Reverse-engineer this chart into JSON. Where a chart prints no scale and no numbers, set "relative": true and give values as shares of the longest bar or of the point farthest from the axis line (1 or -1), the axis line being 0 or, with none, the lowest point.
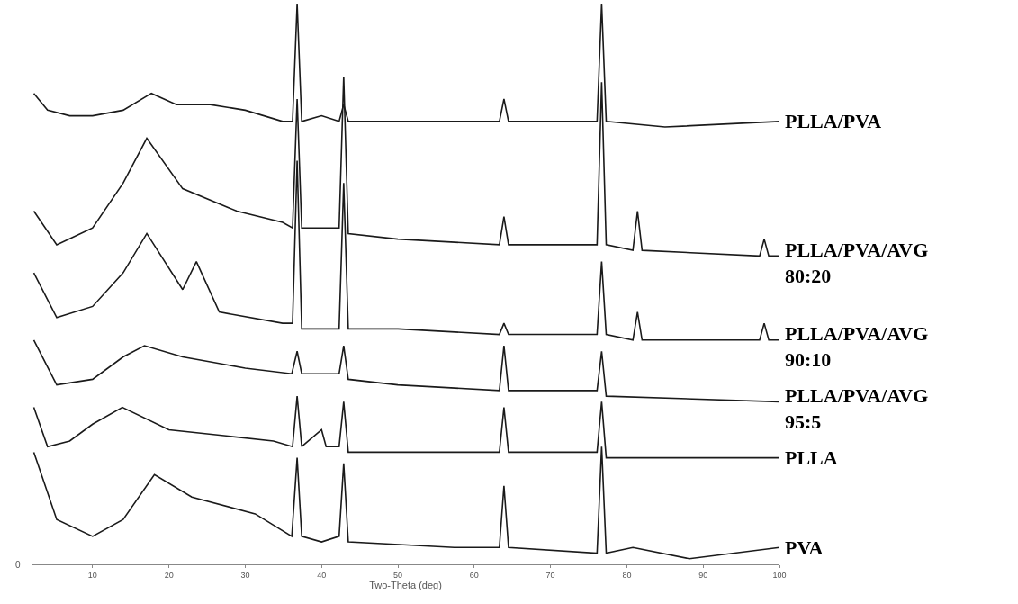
{
  "chart_data": {
    "type": "line",
    "relative": true,
    "xlabel": "Two-Theta (deg)",
    "xlim": [
      2,
      100
    ],
    "xticks": [
      10,
      20,
      30,
      40,
      50,
      60,
      70,
      80,
      90,
      100
    ],
    "legend": false,
    "marker": "none",
    "line_style": "solid",
    "annotations": [
      "0"
    ],
    "series": [
      {
        "name": "PLLA/PVA",
        "color": "#1a1a1a",
        "x": [
          2.3,
          4.1,
          7.0,
          10,
          14,
          17.7,
          21,
          25.4,
          30,
          34.9,
          36.2,
          36.8,
          37.4,
          40,
          42.3,
          42.9,
          43.5,
          50,
          63.3,
          63.9,
          64.5,
          76.1,
          76.7,
          77.3,
          85,
          100
        ],
        "values": [
          0.84,
          0.81,
          0.8,
          0.8,
          0.81,
          0.84,
          0.82,
          0.82,
          0.81,
          0.79,
          0.79,
          1.0,
          0.79,
          0.8,
          0.79,
          0.82,
          0.79,
          0.79,
          0.79,
          0.83,
          0.79,
          0.79,
          1.0,
          0.79,
          0.78,
          0.79
        ]
      },
      {
        "name": "PLLA/PVA/AVG\n80:20",
        "color": "#1a1a1a",
        "x": [
          2.3,
          5.3,
          10,
          14,
          17.1,
          21.8,
          28.9,
          34.9,
          36.2,
          36.8,
          37.4,
          42.3,
          42.9,
          43.5,
          50,
          63.3,
          63.9,
          64.5,
          76.1,
          76.7,
          77.3,
          80.8,
          81.4,
          82,
          97.4,
          98,
          98.6,
          100
        ],
        "values": [
          0.63,
          0.57,
          0.6,
          0.68,
          0.76,
          0.67,
          0.63,
          0.61,
          0.6,
          0.83,
          0.6,
          0.6,
          0.87,
          0.59,
          0.58,
          0.57,
          0.62,
          0.57,
          0.57,
          0.86,
          0.57,
          0.56,
          0.63,
          0.56,
          0.55,
          0.58,
          0.55,
          0.55
        ]
      },
      {
        "name": "PLLA/PVA/AVG\n90:10",
        "color": "#1a1a1a",
        "x": [
          2.3,
          5.3,
          10,
          14,
          17.1,
          21.8,
          23.6,
          26.6,
          34.9,
          36.2,
          36.8,
          37.4,
          42.3,
          42.9,
          43.5,
          50,
          63.3,
          63.9,
          64.5,
          76.1,
          76.7,
          77.3,
          80.8,
          81.4,
          82,
          97.4,
          98,
          98.6,
          100
        ],
        "values": [
          0.52,
          0.44,
          0.46,
          0.52,
          0.59,
          0.49,
          0.54,
          0.45,
          0.43,
          0.43,
          0.72,
          0.42,
          0.42,
          0.68,
          0.42,
          0.42,
          0.41,
          0.43,
          0.41,
          0.41,
          0.54,
          0.41,
          0.4,
          0.45,
          0.4,
          0.4,
          0.43,
          0.4,
          0.4
        ]
      },
      {
        "name": "PLLA/PVA/AVG\n95:5",
        "color": "#1a1a1a",
        "x": [
          2.3,
          5.3,
          10,
          14,
          16.8,
          21.8,
          30,
          36.1,
          36.8,
          37.4,
          42.3,
          42.9,
          43.5,
          50,
          63.3,
          63.9,
          64.5,
          76.1,
          76.7,
          77.3,
          100
        ],
        "values": [
          0.4,
          0.32,
          0.33,
          0.37,
          0.39,
          0.37,
          0.35,
          0.34,
          0.38,
          0.34,
          0.34,
          0.39,
          0.33,
          0.32,
          0.31,
          0.39,
          0.31,
          0.31,
          0.38,
          0.3,
          0.29
        ]
      },
      {
        "name": "PLLA",
        "color": "#1a1a1a",
        "x": [
          2.3,
          4.1,
          7,
          10,
          13.9,
          20,
          33.7,
          36.2,
          36.8,
          37.4,
          40,
          40.6,
          42.3,
          42.9,
          43.5,
          63.3,
          63.9,
          64.5,
          76.1,
          76.7,
          77.3,
          100
        ],
        "values": [
          0.28,
          0.21,
          0.22,
          0.25,
          0.28,
          0.24,
          0.22,
          0.21,
          0.3,
          0.21,
          0.24,
          0.21,
          0.21,
          0.29,
          0.2,
          0.2,
          0.28,
          0.2,
          0.2,
          0.29,
          0.19,
          0.19
        ]
      },
      {
        "name": "PVA",
        "color": "#1a1a1a",
        "x": [
          2.3,
          5.3,
          10,
          14,
          18.1,
          23,
          31.3,
          36.1,
          36.8,
          37.4,
          40,
          42.3,
          42.9,
          43.5,
          57.4,
          63.3,
          63.9,
          64.5,
          76.1,
          76.7,
          77.3,
          80.8,
          88.2,
          100
        ],
        "values": [
          0.2,
          0.08,
          0.05,
          0.08,
          0.16,
          0.12,
          0.09,
          0.05,
          0.19,
          0.05,
          0.04,
          0.05,
          0.18,
          0.04,
          0.03,
          0.03,
          0.14,
          0.03,
          0.02,
          0.21,
          0.02,
          0.03,
          0.01,
          0.03
        ]
      }
    ]
  }
}
